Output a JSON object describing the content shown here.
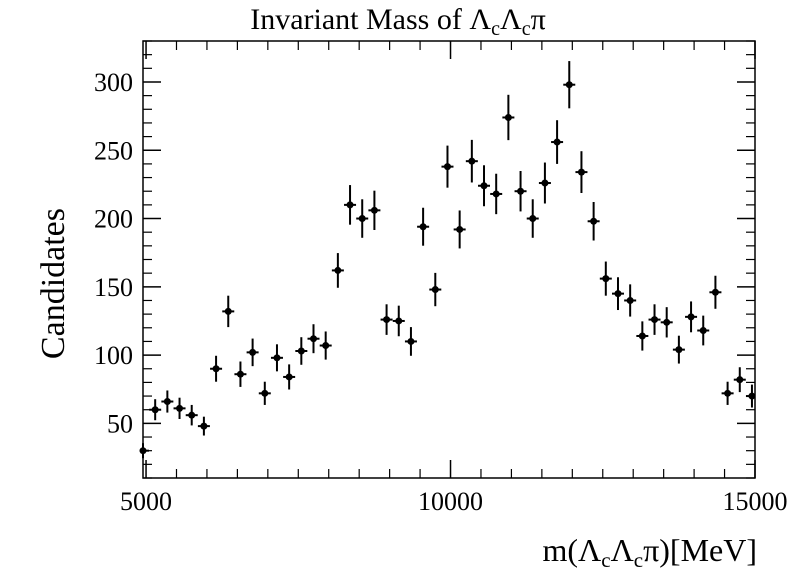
{
  "chart_data": {
    "type": "scatter",
    "title": {
      "prefix": "Invariant Mass of ",
      "lambda": "Λ",
      "sub": "c",
      "pi": "π"
    },
    "xlabel": {
      "prefix": "m(",
      "lambda": "Λ",
      "sub": "c",
      "suffix": "π)[MeV]"
    },
    "ylabel": "Candidates",
    "xlim": [
      4950,
      15000
    ],
    "ylim": [
      10,
      330
    ],
    "x_ticks": [
      5000,
      10000,
      15000
    ],
    "y_ticks": [
      50,
      100,
      150,
      200,
      250,
      300
    ],
    "grid": false,
    "x": [
      4950,
      5150,
      5350,
      5550,
      5750,
      5950,
      6150,
      6350,
      6550,
      6750,
      6950,
      7150,
      7350,
      7550,
      7750,
      7950,
      8150,
      8350,
      8550,
      8750,
      8950,
      9150,
      9350,
      9550,
      9750,
      9950,
      10150,
      10350,
      10550,
      10750,
      10950,
      11150,
      11350,
      11550,
      11750,
      11950,
      12150,
      12350,
      12550,
      12750,
      12950,
      13150,
      13350,
      13550,
      13750,
      13950,
      14150,
      14350,
      14550,
      14750,
      14950
    ],
    "values": [
      30,
      60,
      66,
      61,
      56,
      48,
      90,
      132,
      86,
      102,
      72,
      98,
      84,
      103,
      112,
      107,
      162,
      210,
      200,
      206,
      126,
      125,
      110,
      194,
      148,
      238,
      192,
      242,
      224,
      218,
      274,
      220,
      200,
      226,
      256,
      298,
      234,
      198,
      156,
      145,
      140,
      114,
      126,
      124,
      104,
      128,
      118,
      146,
      72,
      82,
      70
    ],
    "errors": [
      5.5,
      7.7,
      8.1,
      7.8,
      7.5,
      6.9,
      9.5,
      11.5,
      9.3,
      10.1,
      8.5,
      9.9,
      9.2,
      10.1,
      10.6,
      10.3,
      12.7,
      14.5,
      14.1,
      14.4,
      11.2,
      11.2,
      10.5,
      13.9,
      12.2,
      15.4,
      13.9,
      15.6,
      15.0,
      14.8,
      16.6,
      14.8,
      14.1,
      15.0,
      16.0,
      17.3,
      15.3,
      14.1,
      12.5,
      12.0,
      11.8,
      10.7,
      11.2,
      11.1,
      10.2,
      11.3,
      10.9,
      12.1,
      8.5,
      9.1,
      8.4
    ],
    "marker_color": "#000000"
  }
}
